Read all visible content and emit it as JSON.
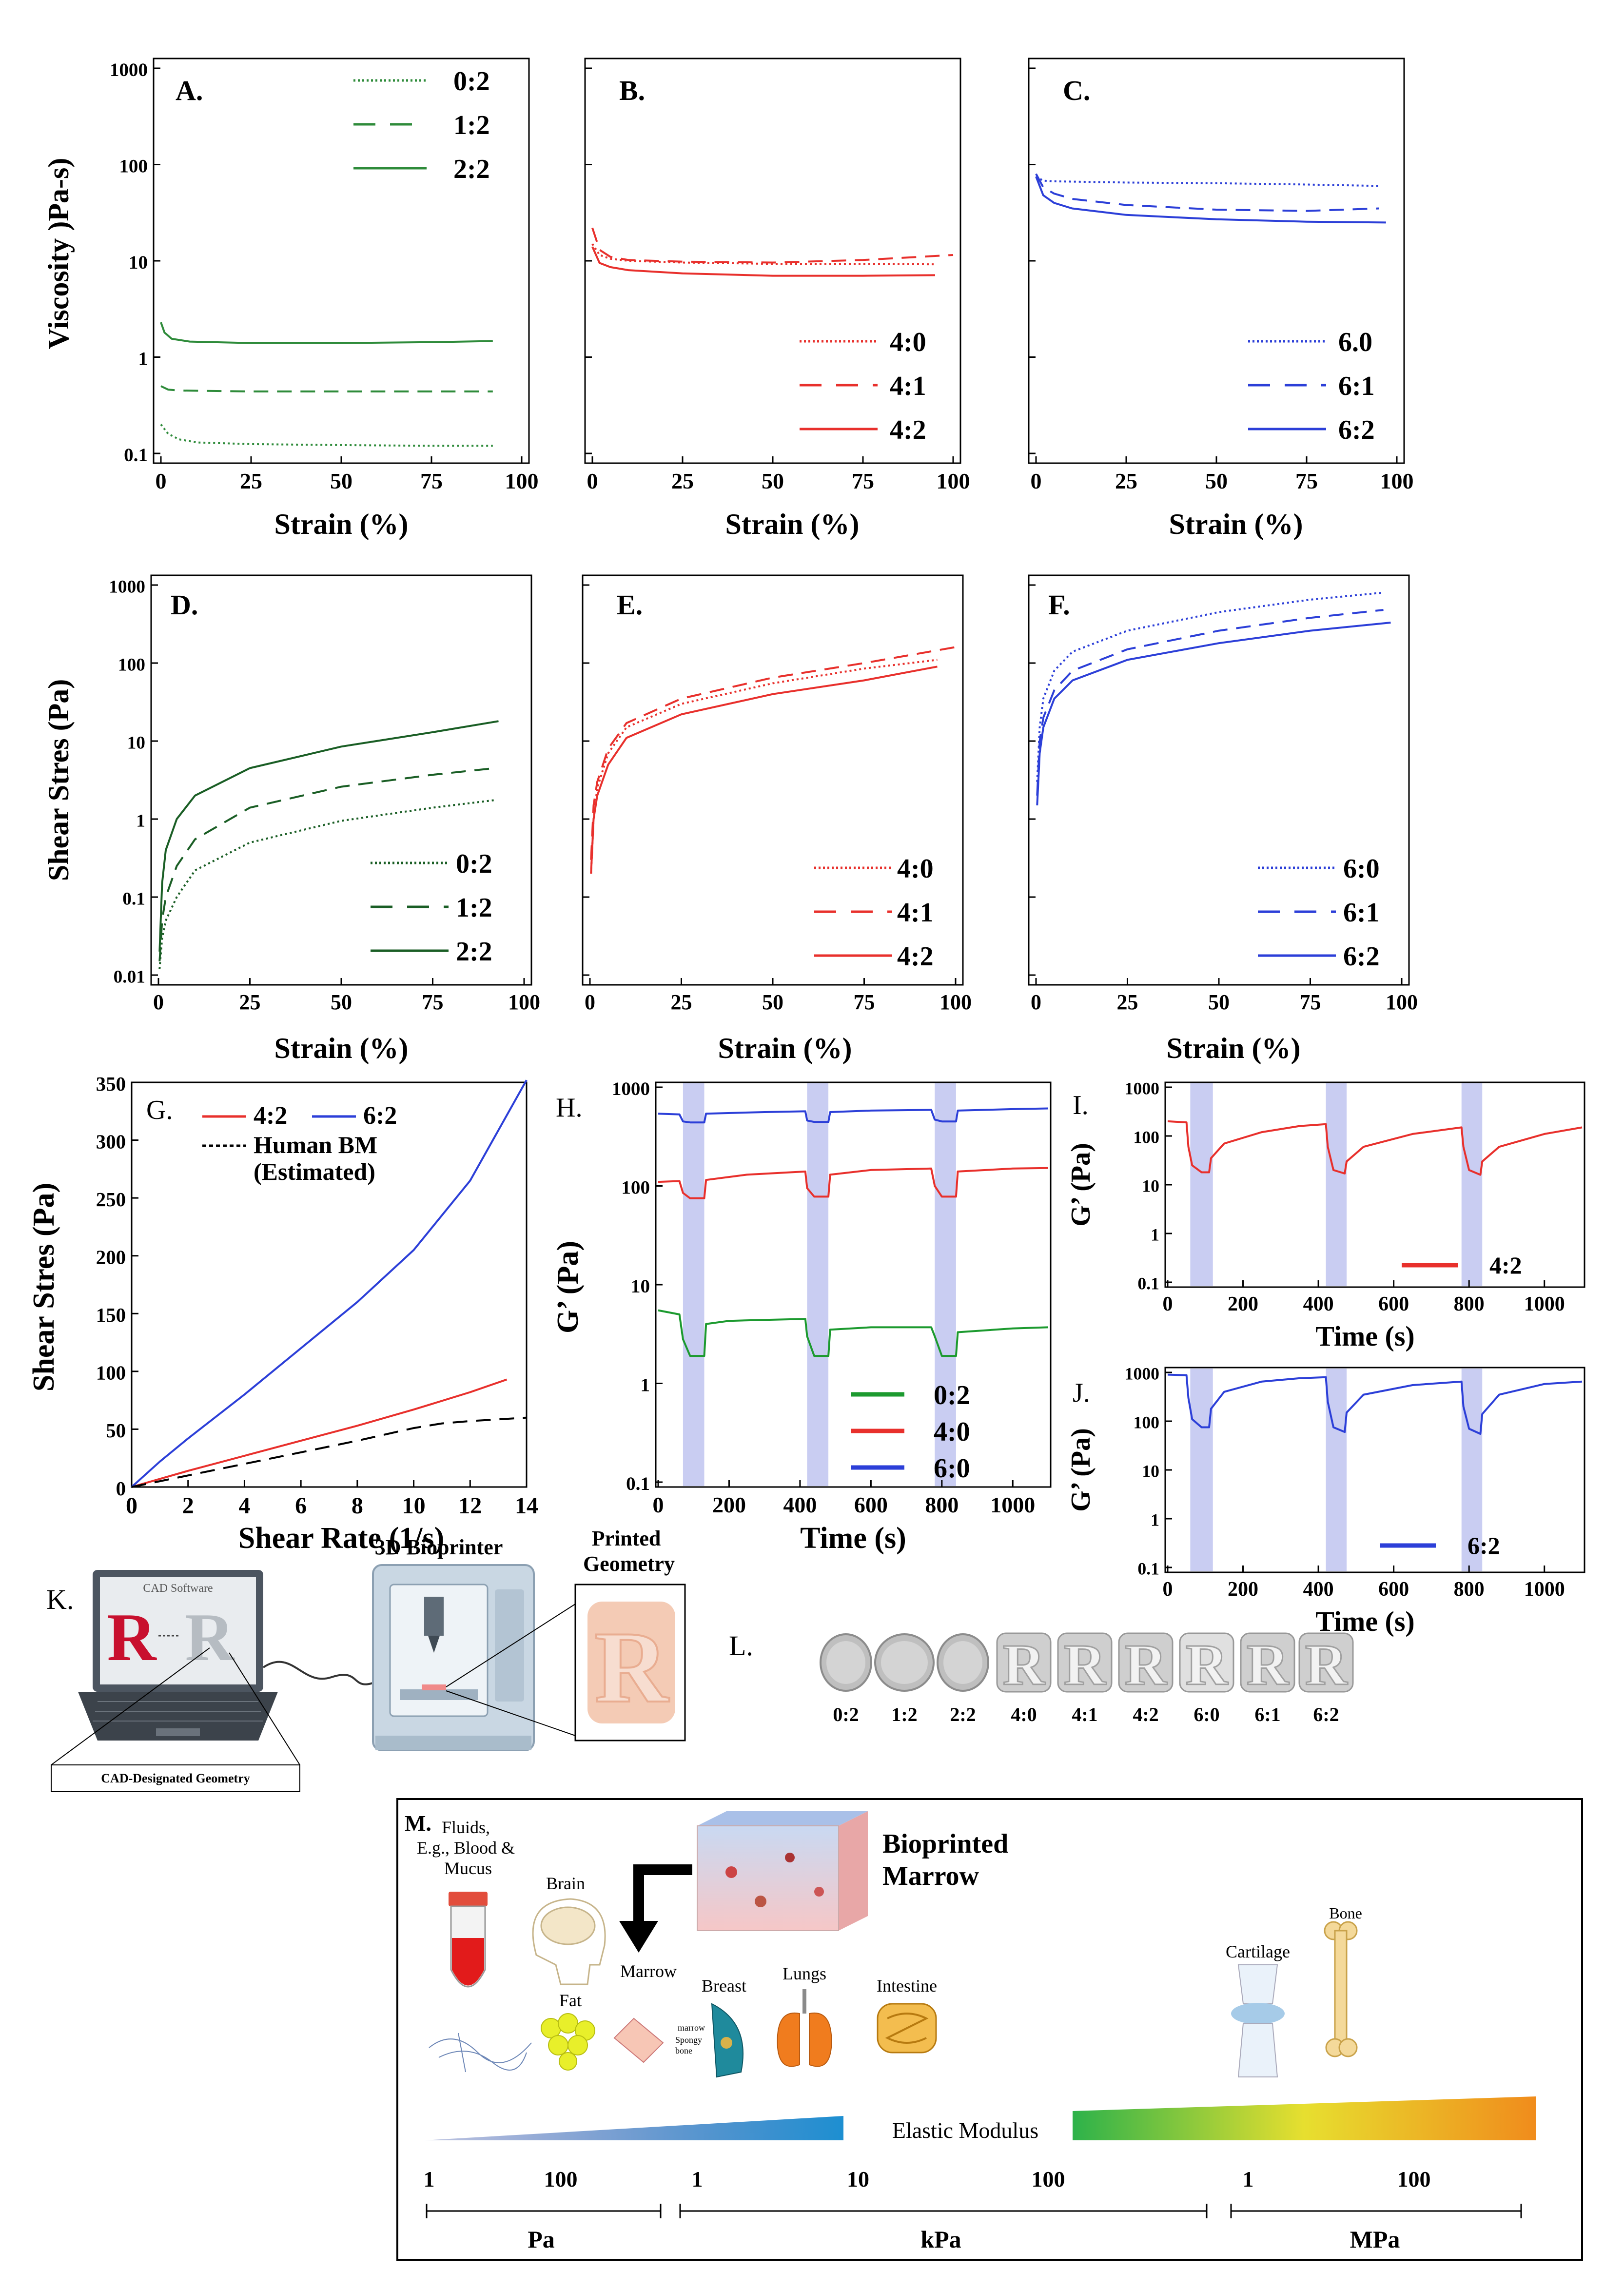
{
  "chart_data": [
    {
      "id": "A",
      "type": "line",
      "label": "A.",
      "xlabel": "Strain (%)",
      "ylabel": "Viscosity )Pa-s)",
      "yscale": "log",
      "xlim": [
        0,
        100
      ],
      "ylim": [
        0.1,
        1000
      ],
      "xticks": [
        "0",
        "25",
        "50",
        "75",
        "100"
      ],
      "yticks": [
        "0.1",
        "1",
        "10",
        "100",
        "1000"
      ],
      "series": [
        {
          "name": "0:2",
          "style": "dotted",
          "color": "#2e8b3a",
          "x": [
            0,
            2,
            5,
            10,
            25,
            50,
            75,
            92
          ],
          "y": [
            0.2,
            0.16,
            0.14,
            0.13,
            0.125,
            0.122,
            0.12,
            0.12
          ]
        },
        {
          "name": "1:2",
          "style": "dashed",
          "color": "#2e8b3a",
          "x": [
            0,
            2,
            5,
            25,
            50,
            75,
            92
          ],
          "y": [
            0.5,
            0.46,
            0.45,
            0.44,
            0.44,
            0.44,
            0.44
          ]
        },
        {
          "name": "2:2",
          "style": "solid",
          "color": "#2e8b3a",
          "x": [
            0,
            1,
            3,
            8,
            25,
            50,
            75,
            92
          ],
          "y": [
            2.3,
            1.8,
            1.55,
            1.45,
            1.4,
            1.4,
            1.43,
            1.47
          ]
        }
      ]
    },
    {
      "id": "B",
      "type": "line",
      "label": "B.",
      "xlabel": "Strain (%)",
      "ylabel": "",
      "yscale": "log",
      "xlim": [
        0,
        100
      ],
      "ylim": [
        0.1,
        1000
      ],
      "xticks": [
        "0",
        "25",
        "50",
        "75",
        "100"
      ],
      "yticks": [],
      "series": [
        {
          "name": "4:0",
          "style": "dotted",
          "color": "#e8302c",
          "x": [
            0,
            2,
            5,
            10,
            25,
            50,
            75,
            95
          ],
          "y": [
            15,
            11.5,
            10.5,
            10,
            9.6,
            9.3,
            9.3,
            9.2
          ]
        },
        {
          "name": "4:1",
          "style": "dashed",
          "color": "#e8302c",
          "x": [
            0,
            2,
            5,
            10,
            25,
            50,
            75,
            100
          ],
          "y": [
            22,
            13,
            11,
            10.2,
            9.8,
            9.6,
            10.2,
            11.5
          ]
        },
        {
          "name": "4:2",
          "style": "solid",
          "color": "#e8302c",
          "x": [
            0,
            2,
            5,
            10,
            25,
            50,
            75,
            95
          ],
          "y": [
            14,
            9.5,
            8.6,
            8,
            7.4,
            7,
            7,
            7.1
          ]
        }
      ]
    },
    {
      "id": "C",
      "type": "line",
      "label": "C.",
      "xlabel": "Strain (%)",
      "ylabel": "",
      "yscale": "log",
      "xlim": [
        0,
        100
      ],
      "ylim": [
        0.1,
        1000
      ],
      "xticks": [
        "0",
        "25",
        "50",
        "75",
        "100"
      ],
      "yticks": [],
      "series": [
        {
          "name": "6.0",
          "style": "dotted",
          "color": "#2c3fd8",
          "x": [
            0,
            2,
            5,
            25,
            50,
            75,
            95
          ],
          "y": [
            75,
            68,
            67,
            65,
            64,
            62,
            60
          ]
        },
        {
          "name": "6:1",
          "style": "dashed",
          "color": "#2c3fd8",
          "x": [
            0,
            2,
            5,
            10,
            25,
            50,
            75,
            95
          ],
          "y": [
            80,
            58,
            50,
            44,
            38,
            34,
            33,
            35
          ]
        },
        {
          "name": "6:2",
          "style": "solid",
          "color": "#2c3fd8",
          "x": [
            0,
            2,
            5,
            10,
            25,
            50,
            75,
            97
          ],
          "y": [
            75,
            48,
            40,
            35,
            30,
            27,
            25.5,
            25
          ]
        }
      ]
    },
    {
      "id": "D",
      "type": "line",
      "label": "D.",
      "xlabel": "Strain (%)",
      "ylabel": "Shear Stres (Pa)",
      "yscale": "log",
      "xlim": [
        0,
        100
      ],
      "ylim": [
        0.01,
        1000
      ],
      "xticks": [
        "0",
        "25",
        "50",
        "75",
        "100"
      ],
      "yticks": [
        "0.01",
        "0.1",
        "1",
        "10",
        "100",
        "1000"
      ],
      "series": [
        {
          "name": "0:2",
          "style": "dotted",
          "color": "#1a5e25",
          "x": [
            0.3,
            1,
            2,
            5,
            10,
            25,
            50,
            75,
            92
          ],
          "y": [
            0.012,
            0.03,
            0.05,
            0.1,
            0.22,
            0.5,
            0.95,
            1.4,
            1.75
          ]
        },
        {
          "name": "1:2",
          "style": "dashed",
          "color": "#1a5e25",
          "x": [
            0.3,
            1,
            2,
            5,
            10,
            25,
            50,
            75,
            92
          ],
          "y": [
            0.015,
            0.05,
            0.1,
            0.25,
            0.55,
            1.4,
            2.6,
            3.7,
            4.5
          ]
        },
        {
          "name": "2:2",
          "style": "solid",
          "color": "#1a5e25",
          "x": [
            0.3,
            1,
            2,
            5,
            10,
            25,
            50,
            75,
            93
          ],
          "y": [
            0.02,
            0.15,
            0.4,
            1,
            2,
            4.5,
            8.5,
            13,
            18
          ]
        }
      ]
    },
    {
      "id": "E",
      "type": "line",
      "label": "E.",
      "xlabel": "Strain (%)",
      "ylabel": "",
      "yscale": "log",
      "xlim": [
        0,
        100
      ],
      "ylim": [
        0.01,
        1000
      ],
      "xticks": [
        "0",
        "25",
        "50",
        "75",
        "100"
      ],
      "yticks": [],
      "series": [
        {
          "name": "4:0",
          "style": "dotted",
          "color": "#e8302c",
          "x": [
            0.3,
            1,
            2,
            5,
            10,
            25,
            50,
            75,
            95
          ],
          "y": [
            0.2,
            1,
            2.5,
            7,
            15,
            30,
            55,
            85,
            110
          ]
        },
        {
          "name": "4:1",
          "style": "dashed",
          "color": "#e8302c",
          "x": [
            0.3,
            1,
            2,
            5,
            10,
            25,
            50,
            75,
            100
          ],
          "y": [
            0.3,
            1.5,
            3,
            8,
            17,
            35,
            65,
            100,
            160
          ]
        },
        {
          "name": "4:2",
          "style": "solid",
          "color": "#e8302c",
          "x": [
            0.3,
            1,
            2,
            5,
            10,
            25,
            50,
            75,
            95
          ],
          "y": [
            0.2,
            1,
            2,
            5,
            11,
            22,
            40,
            60,
            90
          ]
        }
      ]
    },
    {
      "id": "F",
      "type": "line",
      "label": "F.",
      "xlabel": "Strain (%)",
      "ylabel": "",
      "yscale": "log",
      "xlim": [
        0,
        100
      ],
      "ylim": [
        0.01,
        1000
      ],
      "xticks": [
        "0",
        "25",
        "50",
        "75",
        "100"
      ],
      "yticks": [],
      "series": [
        {
          "name": "6:0",
          "style": "dotted",
          "color": "#2c3fd8",
          "x": [
            0.3,
            1,
            2,
            5,
            10,
            25,
            50,
            75,
            95
          ],
          "y": [
            3,
            15,
            35,
            80,
            140,
            260,
            450,
            650,
            800
          ]
        },
        {
          "name": "6:1",
          "style": "dashed",
          "color": "#2c3fd8",
          "x": [
            0.3,
            1,
            2,
            5,
            10,
            25,
            50,
            75,
            95
          ],
          "y": [
            2,
            10,
            20,
            45,
            80,
            150,
            260,
            380,
            480
          ]
        },
        {
          "name": "6:2",
          "style": "solid",
          "color": "#2c3fd8",
          "x": [
            0.3,
            1,
            2,
            5,
            10,
            25,
            50,
            75,
            97
          ],
          "y": [
            1.5,
            7,
            15,
            35,
            60,
            110,
            180,
            260,
            330
          ]
        }
      ]
    },
    {
      "id": "G",
      "type": "line",
      "label": "G.",
      "xlabel": "Shear Rate (1/s)",
      "ylabel": "Shear Stres (Pa)",
      "yscale": "linear",
      "xlim": [
        0,
        14
      ],
      "ylim": [
        0,
        350
      ],
      "xticks": [
        "0",
        "2",
        "4",
        "6",
        "8",
        "10",
        "12",
        "14"
      ],
      "yticks": [
        "0",
        "50",
        "100",
        "150",
        "200",
        "250",
        "300",
        "350"
      ],
      "series": [
        {
          "name": "4:2",
          "style": "solid",
          "color": "#e8302c",
          "x": [
            0,
            2,
            4,
            6,
            8,
            10,
            12,
            13.3
          ],
          "y": [
            0,
            14,
            27,
            40,
            53,
            67,
            82,
            93
          ]
        },
        {
          "name": "6:2",
          "style": "solid",
          "color": "#2c3fd8",
          "x": [
            0,
            1,
            2,
            4,
            6,
            8,
            10,
            12,
            14
          ],
          "y": [
            0,
            22,
            42,
            80,
            120,
            160,
            205,
            265,
            352
          ]
        },
        {
          "name": "Human BM",
          "style": "dashed",
          "color": "#000000",
          "x": [
            0,
            2,
            4,
            6,
            8,
            10,
            11,
            12,
            14
          ],
          "y": [
            0,
            10,
            20,
            30,
            40,
            51,
            55,
            57,
            60
          ]
        }
      ],
      "legend_note": "(Estimated)"
    },
    {
      "id": "H",
      "type": "line",
      "label": "H.",
      "xlabel": "Time (s)",
      "ylabel": "G’ (Pa)",
      "yscale": "log",
      "xlim": [
        0,
        1100
      ],
      "ylim": [
        0.1,
        1000
      ],
      "xticks": [
        "0",
        "200",
        "400",
        "600",
        "800",
        "1000"
      ],
      "yticks": [
        "0.1",
        "1",
        "10",
        "100",
        "1000"
      ],
      "shaded_intervals": [
        [
          70,
          130
        ],
        [
          420,
          480
        ],
        [
          780,
          840
        ]
      ],
      "series": [
        {
          "name": "0:2",
          "style": "solid",
          "color": "#1c9a2f",
          "x": [
            0,
            60,
            70,
            90,
            130,
            135,
            200,
            300,
            415,
            420,
            440,
            480,
            485,
            600,
            770,
            780,
            800,
            840,
            845,
            1000,
            1100
          ],
          "y": [
            5.5,
            5,
            2.8,
            1.9,
            1.9,
            4,
            4.3,
            4.4,
            4.5,
            3,
            1.9,
            1.9,
            3.5,
            3.7,
            3.7,
            3,
            1.9,
            1.9,
            3.3,
            3.6,
            3.7
          ]
        },
        {
          "name": "4:0",
          "style": "solid",
          "color": "#e8302c",
          "x": [
            0,
            60,
            70,
            90,
            130,
            135,
            250,
            415,
            420,
            440,
            480,
            485,
            600,
            770,
            780,
            800,
            840,
            845,
            1000,
            1100
          ],
          "y": [
            110,
            112,
            85,
            75,
            75,
            115,
            130,
            140,
            95,
            78,
            78,
            130,
            145,
            150,
            100,
            78,
            78,
            140,
            150,
            152
          ]
        },
        {
          "name": "6:0",
          "style": "solid",
          "color": "#2c3fd8",
          "x": [
            0,
            60,
            70,
            90,
            130,
            135,
            300,
            415,
            420,
            440,
            480,
            485,
            600,
            770,
            780,
            800,
            840,
            845,
            1000,
            1100
          ],
          "y": [
            540,
            530,
            450,
            440,
            440,
            540,
            560,
            570,
            460,
            445,
            445,
            560,
            580,
            590,
            470,
            450,
            450,
            580,
            600,
            610
          ]
        }
      ]
    },
    {
      "id": "I",
      "type": "line",
      "label": "I.",
      "xlabel": "Time (s)",
      "ylabel": "G’ (Pa)",
      "yscale": "log",
      "xlim": [
        0,
        1100
      ],
      "ylim": [
        0.1,
        1000
      ],
      "xticks": [
        "0",
        "200",
        "400",
        "600",
        "800",
        "1000"
      ],
      "yticks": [
        "0.1",
        "1",
        "10",
        "100",
        "1000"
      ],
      "shaded_intervals": [
        [
          60,
          120
        ],
        [
          420,
          475
        ],
        [
          780,
          835
        ]
      ],
      "series": [
        {
          "name": "4:2",
          "style": "solid",
          "color": "#e8302c",
          "x": [
            0,
            50,
            55,
            65,
            90,
            110,
            115,
            150,
            250,
            350,
            420,
            425,
            440,
            470,
            475,
            520,
            650,
            780,
            785,
            800,
            830,
            835,
            880,
            1000,
            1100
          ],
          "y": [
            200,
            190,
            60,
            25,
            18,
            18,
            35,
            70,
            120,
            160,
            175,
            60,
            20,
            17,
            30,
            60,
            110,
            150,
            60,
            20,
            16,
            30,
            60,
            110,
            150
          ]
        }
      ]
    },
    {
      "id": "J",
      "type": "line",
      "label": "J.",
      "xlabel": "Time (s)",
      "ylabel": "G’ (Pa)",
      "yscale": "log",
      "xlim": [
        0,
        1100
      ],
      "ylim": [
        0.1,
        1000
      ],
      "xticks": [
        "0",
        "200",
        "400",
        "600",
        "800",
        "1000"
      ],
      "yticks": [
        "0.1",
        "1",
        "10",
        "100",
        "1000"
      ],
      "shaded_intervals": [
        [
          60,
          120
        ],
        [
          420,
          475
        ],
        [
          780,
          835
        ]
      ],
      "series": [
        {
          "name": "6:2",
          "style": "solid",
          "color": "#2c3fd8",
          "x": [
            0,
            50,
            55,
            65,
            90,
            110,
            115,
            150,
            250,
            350,
            420,
            425,
            440,
            470,
            475,
            520,
            650,
            780,
            785,
            800,
            830,
            835,
            880,
            1000,
            1100
          ],
          "y": [
            900,
            880,
            300,
            110,
            75,
            75,
            180,
            400,
            650,
            760,
            800,
            250,
            75,
            60,
            150,
            350,
            550,
            650,
            200,
            70,
            55,
            140,
            350,
            580,
            650
          ]
        }
      ]
    }
  ],
  "panel_k": {
    "label": "K.",
    "cad_software": "CAD Software",
    "letter": "R",
    "bioprinter": "3D Bioprinter",
    "printed_geometry": "Printed\nGeometry",
    "cad_designated": "CAD-Designated Geometry"
  },
  "panel_l": {
    "label": "L.",
    "samples": [
      "0:2",
      "1:2",
      "2:2",
      "4:0",
      "4:1",
      "4:2",
      "6:0",
      "6:1",
      "6:2"
    ]
  },
  "panel_m": {
    "label": "M.",
    "fluids": "Fluids,\nE.g., Blood &\nMucus",
    "brain": "Brain",
    "bioprinted_marrow": "Bioprinted\nMarrow",
    "marrow": "Marrow",
    "marrow_small": "marrow",
    "spongy_bone": "Spongy\nbone",
    "fat": "Fat",
    "breast": "Breast",
    "lungs": "Lungs",
    "intestine": "Intestine",
    "cartilage": "Cartilage",
    "bone": "Bone",
    "elastic_modulus": "Elastic Modulus",
    "scale_ticks": [
      "1",
      "100",
      "1",
      "10",
      "100",
      "1",
      "100"
    ],
    "units": [
      "Pa",
      "kPa",
      "MPa"
    ]
  }
}
